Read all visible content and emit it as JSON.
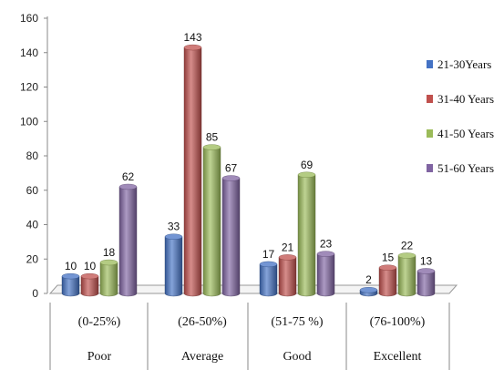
{
  "chart_data": {
    "type": "bar",
    "categories": [
      "Poor",
      "Average",
      "Good",
      "Excellent"
    ],
    "ranges": [
      "(0-25%)",
      "(26-50%)",
      "(51-75 %)",
      "(76-100%)"
    ],
    "series": [
      {
        "name": "21-30Years",
        "color": "#4472C4",
        "values": [
          10,
          33,
          17,
          2
        ]
      },
      {
        "name": "31-40 Years",
        "color": "#C0504D",
        "values": [
          10,
          143,
          21,
          15
        ]
      },
      {
        "name": "41-50 Years",
        "color": "#9BBB59",
        "values": [
          18,
          85,
          69,
          22
        ]
      },
      {
        "name": "51-60 Years",
        "color": "#8064A2",
        "values": [
          62,
          67,
          23,
          13
        ]
      }
    ],
    "y_ticks": [
      0,
      20,
      40,
      60,
      80,
      100,
      120,
      140,
      160
    ],
    "ylim": [
      0,
      160
    ],
    "legend_position": "right",
    "grid": false,
    "title": "",
    "xlabel": "",
    "ylabel": ""
  }
}
